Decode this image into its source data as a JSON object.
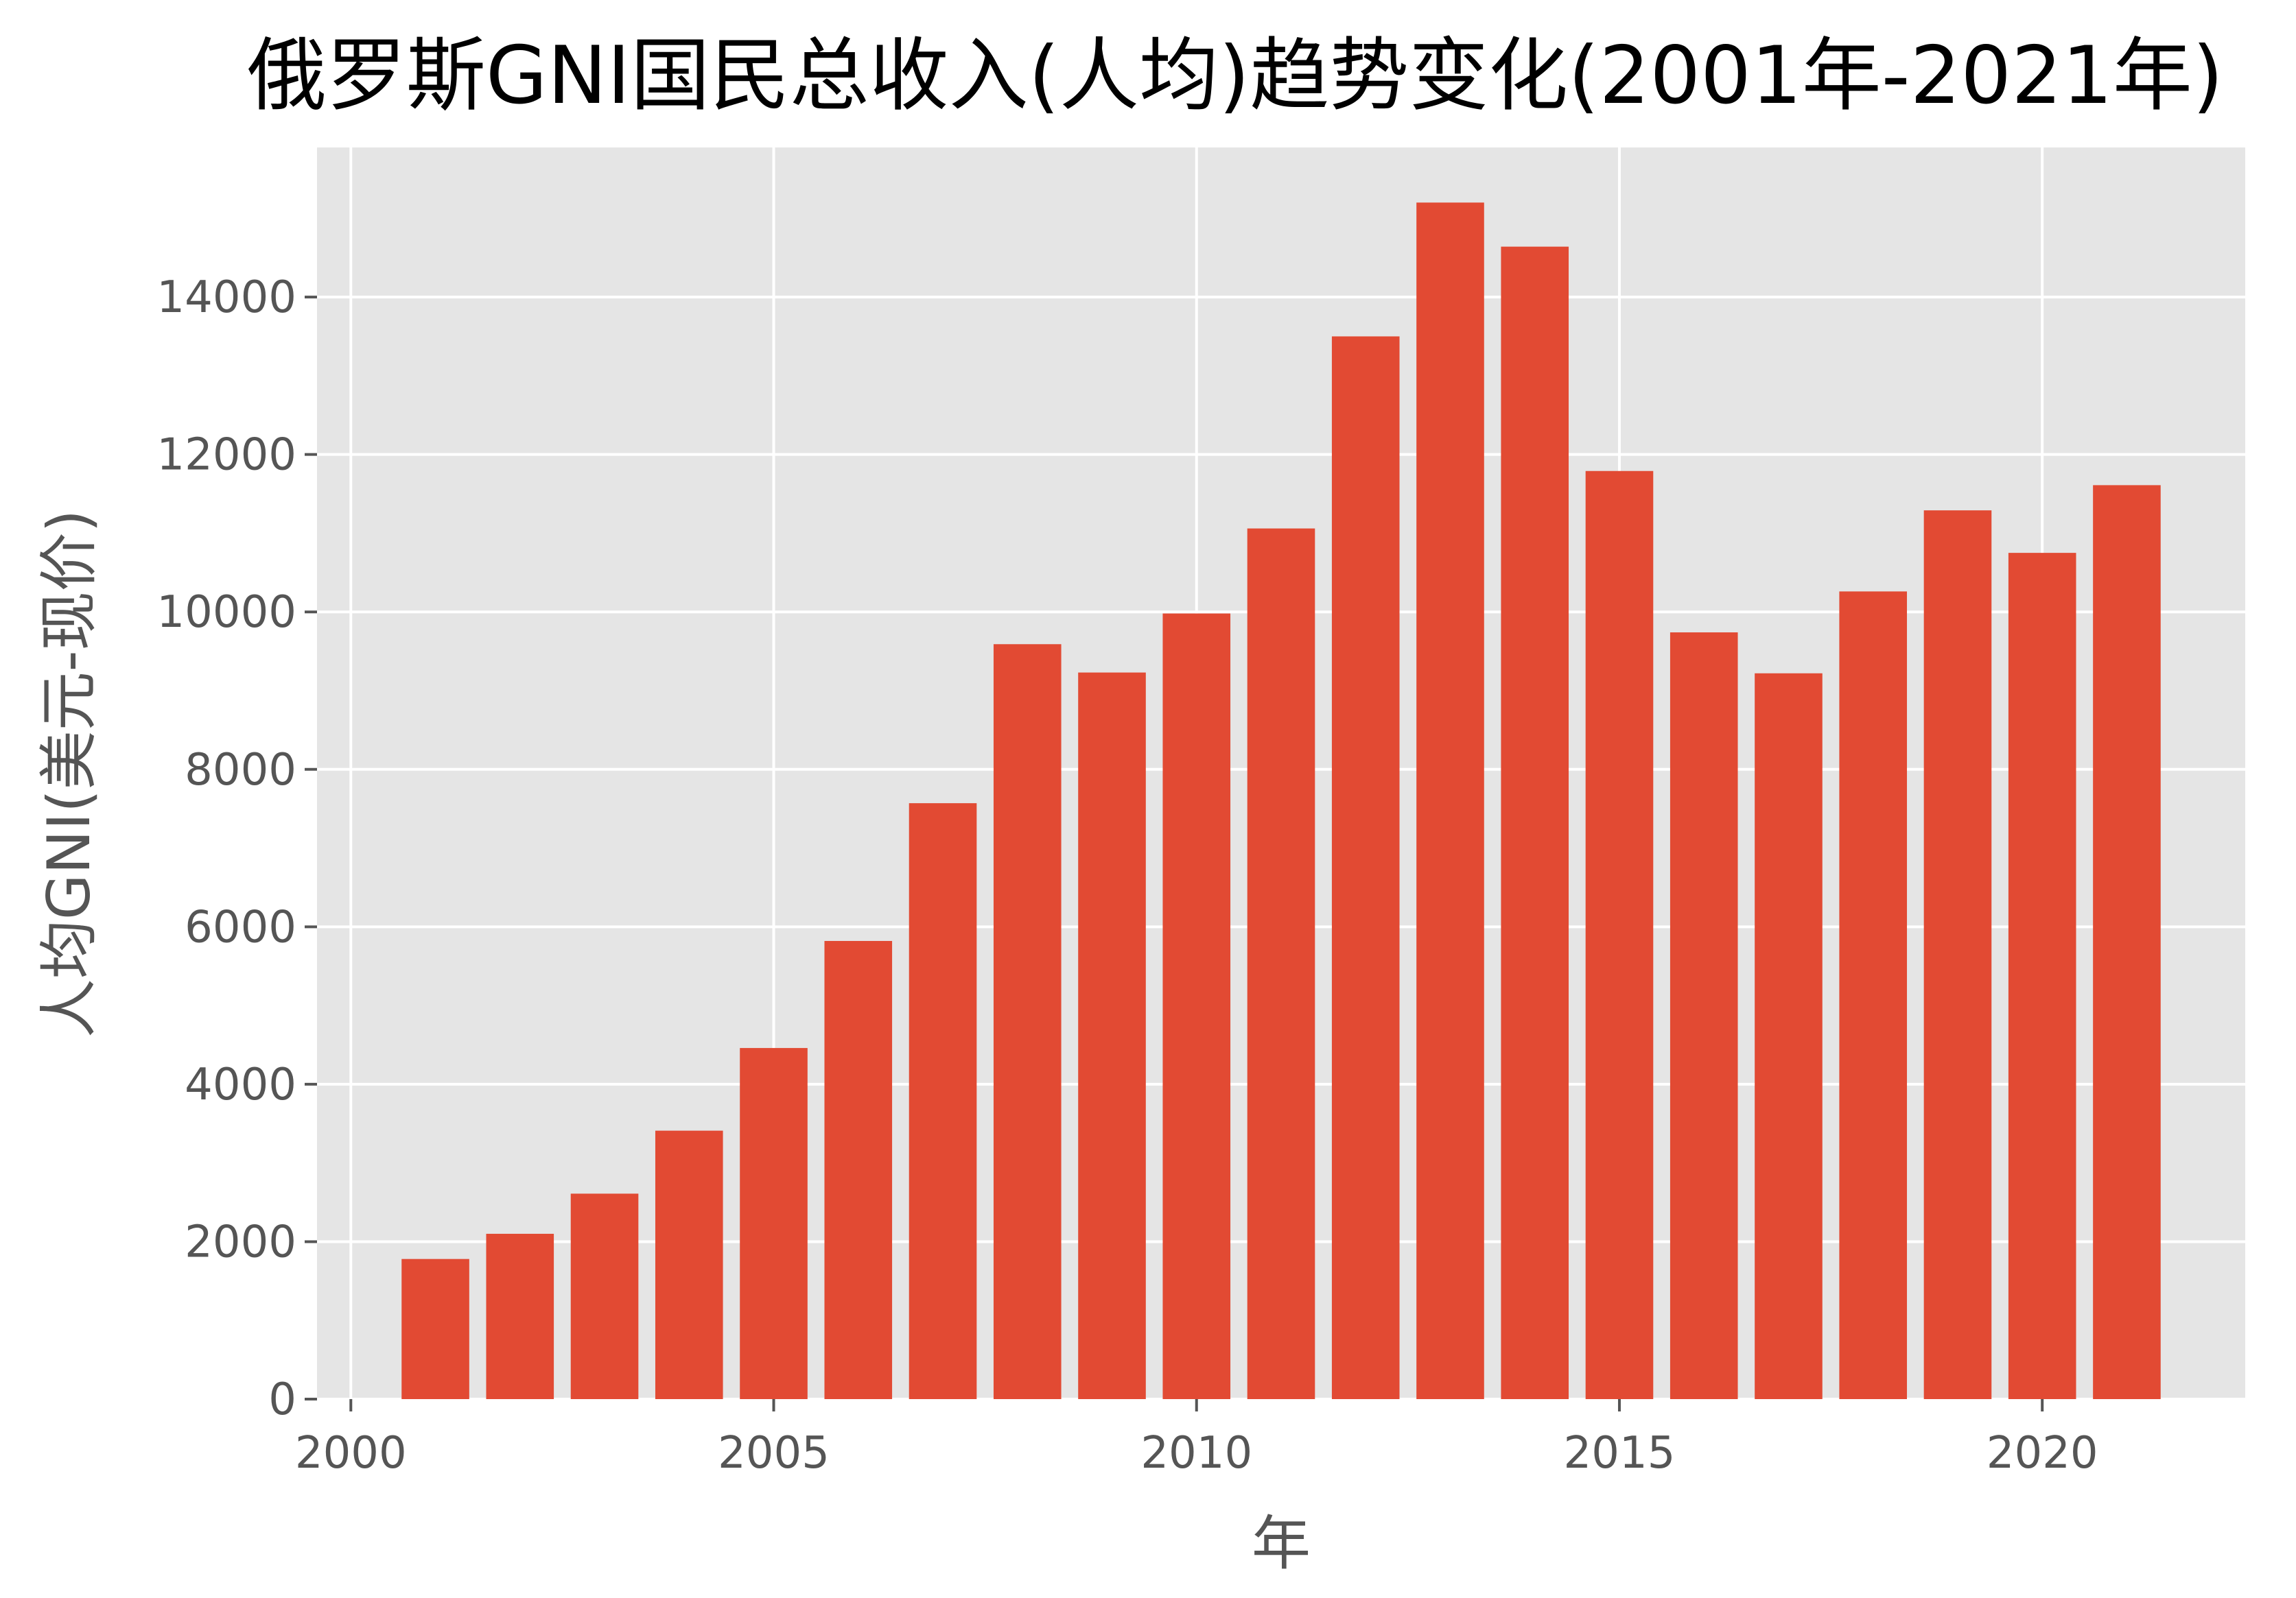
{
  "chart_data": {
    "type": "bar",
    "title": "俄罗斯GNI国民总收入(人均)趋势变化(2001年-2021年)",
    "xlabel": "年",
    "ylabel": "人均GNI(美元-现价)",
    "x": [
      2001,
      2002,
      2003,
      2004,
      2005,
      2006,
      2007,
      2008,
      2009,
      2010,
      2011,
      2012,
      2013,
      2014,
      2015,
      2016,
      2017,
      2018,
      2019,
      2020,
      2021
    ],
    "values": [
      1780,
      2100,
      2610,
      3410,
      4460,
      5820,
      7570,
      9590,
      9230,
      9980,
      11060,
      13500,
      15200,
      14640,
      11790,
      9740,
      9220,
      10260,
      11290,
      10750,
      11610
    ],
    "xlim": [
      1999.6,
      2022.4
    ],
    "ylim": [
      0,
      15900
    ],
    "x_ticks": [
      2000,
      2005,
      2010,
      2015,
      2020
    ],
    "y_ticks": [
      0,
      2000,
      4000,
      6000,
      8000,
      10000,
      12000,
      14000
    ],
    "grid": true,
    "colors": {
      "bar": "#E24A33",
      "plot_background": "#E5E5E5",
      "grid": "#FFFFFF",
      "text": "#555555",
      "title": "#000000"
    }
  }
}
